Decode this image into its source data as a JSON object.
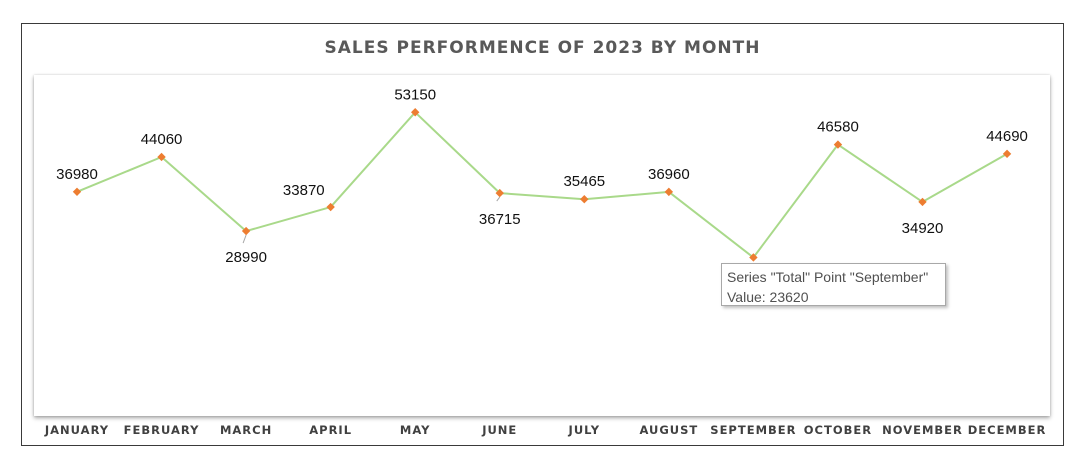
{
  "chart_data": {
    "type": "line",
    "title": "SALES PERFORMENCE OF 2023 BY MONTH",
    "categories": [
      "JANUARY",
      "FEBRUARY",
      "MARCH",
      "APRIL",
      "MAY",
      "JUNE",
      "JULY",
      "AUGUST",
      "SEPTEMBER",
      "OCTOBER",
      "NOVEMBER",
      "DECEMBER"
    ],
    "series": [
      {
        "values": [
          36980,
          44060,
          28990,
          33870,
          53150,
          36715,
          35465,
          36960,
          23620,
          46580,
          34920,
          44690
        ],
        "line_color": "#a9d98a",
        "marker_color": "#ed7d31"
      }
    ],
    "data_label_position": [
      "above",
      "above",
      "below",
      "left",
      "above",
      "below",
      "above",
      "above",
      "below",
      "above",
      "below",
      "above"
    ],
    "grid": false,
    "legend": "none"
  },
  "tooltip": {
    "line1": "Series \"Total\" Point \"September\"",
    "line2": "Value: 23620"
  }
}
